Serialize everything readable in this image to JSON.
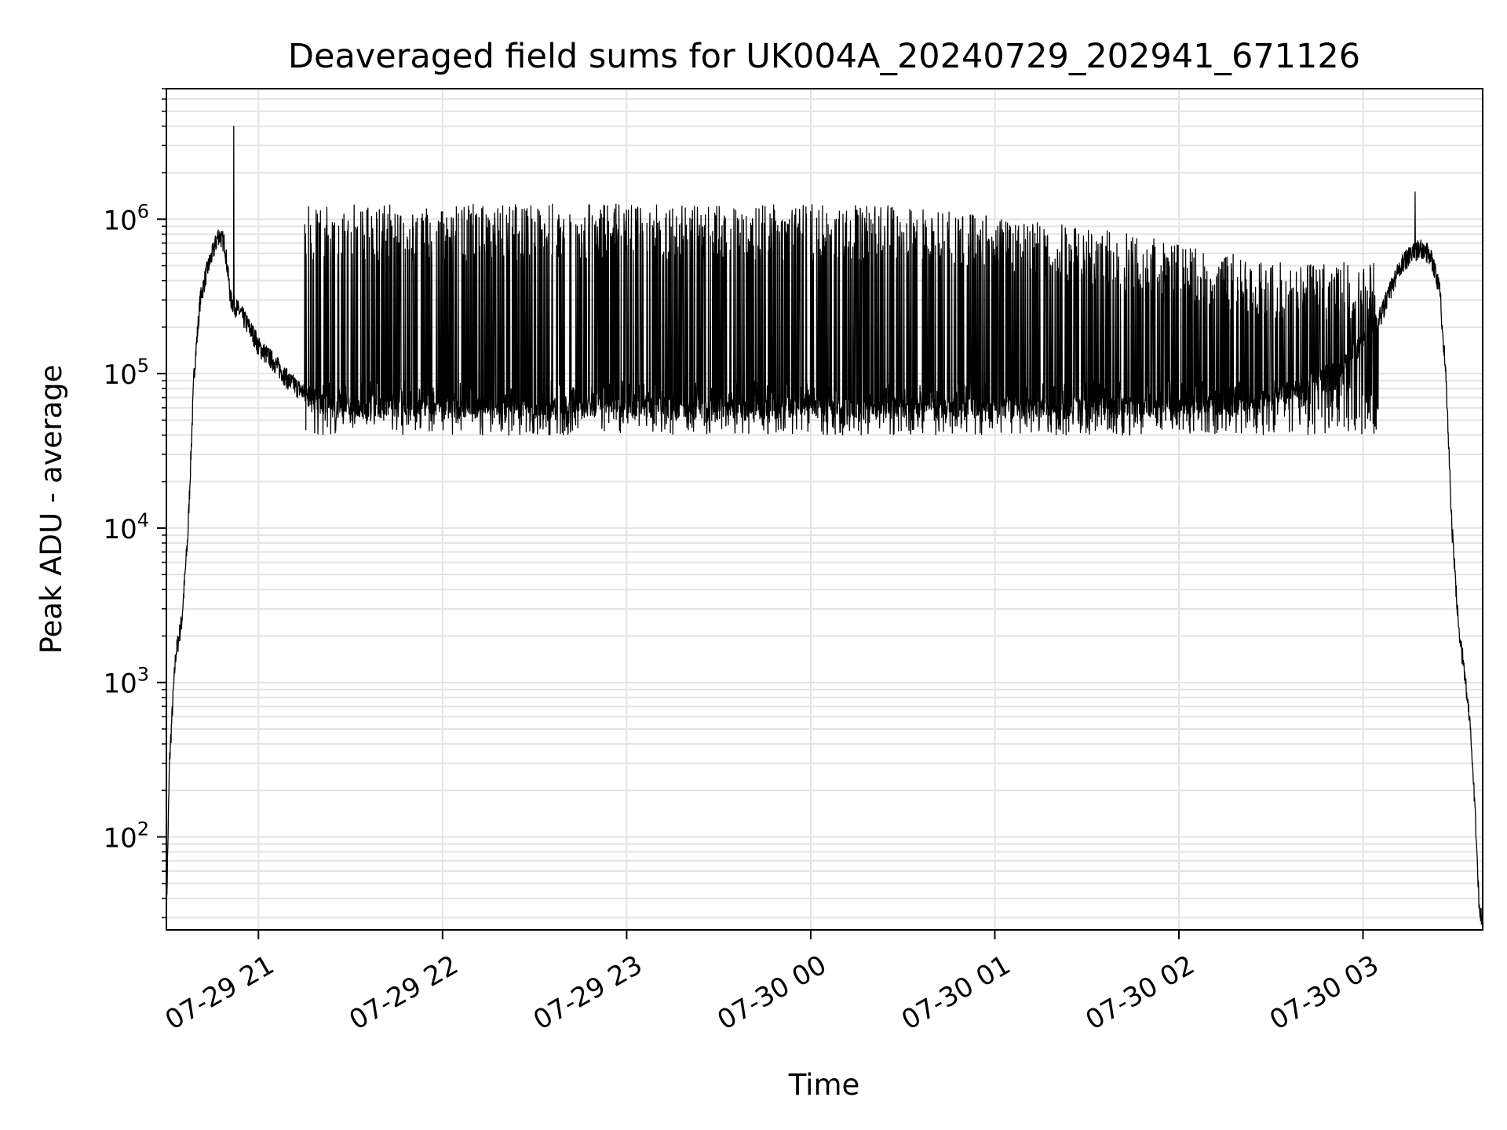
{
  "chart_data": {
    "type": "line",
    "title": "Deaveraged field sums for UK004A_20240729_202941_671126",
    "xlabel": "Time",
    "ylabel": "Peak ADU - average",
    "yscale": "log",
    "grid": true,
    "legend": "none",
    "xlim": [
      "2024-07-29 20:30",
      "2024-07-30 03:39"
    ],
    "ylim": [
      25,
      7000000
    ],
    "x_ticks": [
      {
        "value": "2024-07-29 21:00",
        "label": "07-29 21"
      },
      {
        "value": "2024-07-29 22:00",
        "label": "07-29 22"
      },
      {
        "value": "2024-07-29 23:00",
        "label": "07-29 23"
      },
      {
        "value": "2024-07-30 00:00",
        "label": "07-30 00"
      },
      {
        "value": "2024-07-30 01:00",
        "label": "07-30 01"
      },
      {
        "value": "2024-07-30 02:00",
        "label": "07-30 02"
      },
      {
        "value": "2024-07-30 03:00",
        "label": "07-30 03"
      }
    ],
    "y_ticks": [
      {
        "value": 100,
        "base": "10",
        "exp": "2"
      },
      {
        "value": 1000,
        "base": "10",
        "exp": "3"
      },
      {
        "value": 10000,
        "base": "10",
        "exp": "4"
      },
      {
        "value": 100000,
        "base": "10",
        "exp": "5"
      },
      {
        "value": 1000000,
        "base": "10",
        "exp": "6"
      }
    ],
    "series_color": "#000000",
    "series": [
      {
        "x": [
          "2024-07-29 20:30",
          "2024-07-29 20:31",
          "2024-07-29 20:32",
          "2024-07-29 20:33",
          "2024-07-29 20:35",
          "2024-07-29 20:37",
          "2024-07-29 20:39",
          "2024-07-29 20:41",
          "2024-07-29 20:43",
          "2024-07-29 20:45",
          "2024-07-29 20:47",
          "2024-07-29 20:49",
          "2024-07-29 20:51",
          "2024-07-29 20:54",
          "2024-07-29 20:57",
          "2024-07-29 20:59",
          "2024-07-29 21:00",
          "2024-07-29 21:05",
          "2024-07-29 21:10",
          "2024-07-29 21:15",
          "2024-07-29 21:20",
          "2024-07-29 21:25",
          "2024-07-29 21:30",
          "2024-07-29 21:40",
          "2024-07-29 22:00",
          "2024-07-29 22:30",
          "2024-07-29 23:00",
          "2024-07-29 23:30",
          "2024-07-30 00:00",
          "2024-07-30 00:30",
          "2024-07-30 01:00",
          "2024-07-30 01:30",
          "2024-07-30 02:00",
          "2024-07-30 02:20",
          "2024-07-30 02:40",
          "2024-07-30 02:55",
          "2024-07-30 03:05",
          "2024-07-30 03:12",
          "2024-07-30 03:18",
          "2024-07-30 03:22",
          "2024-07-30 03:25",
          "2024-07-30 03:27",
          "2024-07-30 03:29",
          "2024-07-30 03:31",
          "2024-07-30 03:33",
          "2024-07-30 03:35",
          "2024-07-30 03:37",
          "2024-07-30 03:38"
        ],
        "values": [
          30,
          300,
          700,
          1500,
          2500,
          9000,
          100000,
          300000,
          450000,
          600000,
          800000,
          700000,
          300000,
          250000,
          200000,
          170000,
          150000,
          120000,
          90000,
          75000,
          65000,
          60000,
          60000,
          60000,
          60000,
          60000,
          60000,
          60000,
          60000,
          60000,
          60000,
          60000,
          60000,
          65000,
          80000,
          120000,
          220000,
          500000,
          650000,
          600000,
          350000,
          100000,
          10000,
          2500,
          1200,
          500,
          100,
          30
        ],
        "oscillation": {
          "start": "2024-07-29 21:15",
          "end": "2024-07-30 03:05",
          "low": 40000,
          "high": 1200000,
          "high_late": 500000
        }
      }
    ],
    "annotations": [
      {
        "x": "2024-07-29 20:52",
        "y": 4000000,
        "note": "spike"
      },
      {
        "x": "2024-07-30 03:17",
        "y": 1500000,
        "note": "spike"
      }
    ]
  }
}
